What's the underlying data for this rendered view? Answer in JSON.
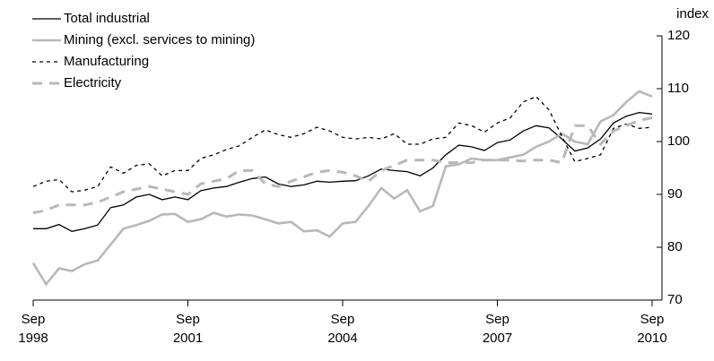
{
  "chart_data": {
    "type": "line",
    "y_label": "index",
    "categories": [
      "Sep 1998",
      null,
      null,
      null,
      null,
      null,
      null,
      null,
      null,
      null,
      null,
      null,
      "Sep 2001",
      null,
      null,
      null,
      null,
      null,
      null,
      null,
      null,
      null,
      null,
      null,
      "Sep 2004",
      null,
      null,
      null,
      null,
      null,
      null,
      null,
      null,
      null,
      null,
      null,
      "Sep 2007",
      null,
      null,
      null,
      null,
      null,
      null,
      null,
      null,
      null,
      null,
      null,
      "Sep 2010"
    ],
    "series": [
      {
        "name": "Total industrial",
        "color": "#000000",
        "dash": false,
        "width": 1.3,
        "values": [
          83.5,
          83.5,
          84.3,
          83,
          83.5,
          84.2,
          87.5,
          88,
          89.5,
          90,
          89,
          89.5,
          89,
          90.7,
          91.2,
          91.5,
          92.3,
          93,
          93.3,
          92,
          91.5,
          91.8,
          92.5,
          92.3,
          92.5,
          92.6,
          93.5,
          94.8,
          94.5,
          94.3,
          93.5,
          95,
          97.5,
          99.3,
          99,
          98.3,
          99.8,
          100.3,
          102,
          103,
          102.6,
          100.5,
          98.2,
          98.8,
          100.5,
          103.5,
          104.8,
          105.5,
          105.2
        ]
      },
      {
        "name": "Mining (excl. services to mining)",
        "color": "#b8b8b8",
        "dash": false,
        "width": 2.6,
        "values": [
          77,
          73,
          76,
          75.5,
          76.8,
          77.5,
          80.5,
          83.5,
          84.2,
          85,
          86.2,
          86.3,
          84.8,
          85.3,
          86.5,
          85.8,
          86.2,
          86,
          85.3,
          84.5,
          84.8,
          83,
          83.2,
          82,
          84.5,
          84.8,
          87.8,
          91.2,
          89.2,
          90.8,
          86.8,
          87.8,
          95.3,
          95.7,
          96.8,
          96.5,
          96.5,
          97,
          97.5,
          99,
          100,
          101.5,
          100,
          99.5,
          103.8,
          105,
          107.5,
          109.5,
          108.5
        ]
      },
      {
        "name": "Manufacturing",
        "color": "#000000",
        "dash": true,
        "width": 1.3,
        "values": [
          91.5,
          92.5,
          92.8,
          90.5,
          90.8,
          91.5,
          95.2,
          94,
          95.5,
          95.8,
          93.5,
          94.5,
          94.5,
          96.8,
          97.5,
          98.5,
          99.2,
          100.8,
          102.2,
          101.3,
          100.8,
          101.5,
          102.7,
          102,
          100.8,
          100.5,
          100.8,
          100.5,
          101.5,
          99.5,
          99.5,
          100.5,
          100.8,
          103.5,
          103,
          101.8,
          103.5,
          104.5,
          107.5,
          108.5,
          106,
          101,
          96.2,
          96.8,
          97.5,
          102.5,
          103.3,
          102.5,
          102.7
        ]
      },
      {
        "name": "Electricity",
        "color": "#b8b8b8",
        "dash": true,
        "width": 3,
        "values": [
          86.5,
          87,
          88,
          88,
          88,
          88.5,
          89.5,
          90.5,
          91,
          91.5,
          91,
          90.5,
          90,
          92,
          92.5,
          93,
          94.5,
          94.5,
          92,
          91.5,
          92.5,
          93.3,
          94.2,
          94.5,
          94.2,
          93.5,
          92.5,
          94.5,
          95.5,
          96.5,
          96.5,
          96.5,
          96,
          96,
          96,
          96.5,
          96.5,
          96.5,
          96.3,
          96.5,
          96.5,
          96,
          103,
          103,
          99.5,
          102,
          103,
          104,
          104.5
        ]
      }
    ],
    "ylim": [
      70,
      120
    ],
    "yticks": [
      70,
      80,
      90,
      100,
      110,
      120
    ],
    "legend": "upper left",
    "grid": false
  }
}
